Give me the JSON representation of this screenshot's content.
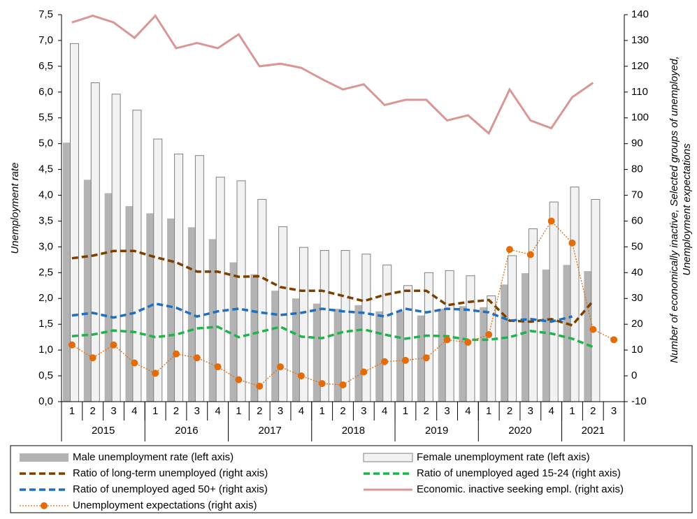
{
  "chart_data": {
    "type": "combo",
    "ylabel": "Unemployment rate",
    "y2label": [
      "Number of economically inactive, Selected groups of unemployed,",
      "Unemployment expectations"
    ],
    "categories": [
      "1",
      "2",
      "3",
      "4",
      "1",
      "2",
      "3",
      "4",
      "1",
      "2",
      "3",
      "4",
      "1",
      "2",
      "3",
      "4",
      "1",
      "2",
      "3",
      "4",
      "1",
      "2",
      "3",
      "4",
      "1",
      "2",
      "3"
    ],
    "year_groups": [
      {
        "label": "2015",
        "quarters": 4
      },
      {
        "label": "2016",
        "quarters": 4
      },
      {
        "label": "2017",
        "quarters": 4
      },
      {
        "label": "2018",
        "quarters": 4
      },
      {
        "label": "2019",
        "quarters": 4
      },
      {
        "label": "2020",
        "quarters": 4
      },
      {
        "label": "2021",
        "quarters": 3
      }
    ],
    "ylim": [
      0,
      7.5
    ],
    "yticks": [
      {
        "value": 0,
        "label": "0,0"
      },
      {
        "value": 0.5,
        "label": "0,5"
      },
      {
        "value": 1,
        "label": "1,0"
      },
      {
        "value": 1.5,
        "label": "1,5"
      },
      {
        "value": 2,
        "label": "2,0"
      },
      {
        "value": 2.5,
        "label": "2,5"
      },
      {
        "value": 3,
        "label": "3,0"
      },
      {
        "value": 3.5,
        "label": "3,5"
      },
      {
        "value": 4,
        "label": "4,0"
      },
      {
        "value": 4.5,
        "label": "4,5"
      },
      {
        "value": 5,
        "label": "5,0"
      },
      {
        "value": 5.5,
        "label": "5,5"
      },
      {
        "value": 6,
        "label": "6,0"
      },
      {
        "value": 6.5,
        "label": "6,5"
      },
      {
        "value": 7,
        "label": "7,0"
      },
      {
        "value": 7.5,
        "label": "7,5"
      }
    ],
    "y2lim": [
      -10,
      140
    ],
    "y2ticks": [
      -10,
      0,
      10,
      20,
      30,
      40,
      50,
      60,
      70,
      80,
      90,
      100,
      110,
      120,
      130,
      140
    ],
    "grid": false,
    "legend": "bottom",
    "series": [
      {
        "name": "Male unemployment rate (left axis)",
        "type": "bar",
        "color": "#b3b3b3",
        "axis": "y",
        "values": [
          5.02,
          4.3,
          4.04,
          3.79,
          3.65,
          3.55,
          3.38,
          3.15,
          2.7,
          2.47,
          2.15,
          2.0,
          1.9,
          1.8,
          1.87,
          1.75,
          1.75,
          1.67,
          1.8,
          1.85,
          1.83,
          2.27,
          2.49,
          2.56,
          2.65,
          2.53,
          null
        ]
      },
      {
        "name": "Female unemployment rate (left axis)",
        "type": "bar",
        "color": "#f2f2f2",
        "axis": "y",
        "values": [
          6.94,
          6.18,
          5.96,
          5.65,
          5.09,
          4.8,
          4.77,
          4.35,
          4.28,
          3.92,
          3.39,
          2.99,
          2.93,
          2.93,
          2.86,
          2.65,
          2.25,
          2.5,
          2.54,
          2.44,
          2.05,
          2.83,
          3.35,
          3.87,
          4.16,
          3.92,
          null
        ]
      },
      {
        "name": "Ratio of long-term unemployed  (right axis)",
        "type": "line",
        "style": "dashed",
        "color": "#7b3f00",
        "axis": "y2",
        "values": [
          45.6,
          46.6,
          48.4,
          48.4,
          46,
          44,
          40.4,
          40.4,
          38.4,
          38.6,
          34.4,
          33,
          33,
          31,
          29,
          31.4,
          33,
          33,
          27.4,
          28.6,
          29.4,
          21.4,
          21,
          22,
          19.6,
          29,
          null
        ]
      },
      {
        "name": "Ratio of unemployed aged 15-24 (right axis)",
        "type": "line",
        "style": "dashed",
        "color": "#1fb34a",
        "axis": "y2",
        "values": [
          15.4,
          16,
          17.6,
          17,
          15,
          16,
          18.4,
          19,
          15,
          17,
          19,
          15.2,
          14.6,
          17,
          18,
          16,
          14.4,
          15.6,
          15.4,
          14,
          14,
          15,
          17.4,
          16.4,
          14.4,
          11.2,
          null
        ]
      },
      {
        "name": "Ratio of unemployed aged 50+ (right axis)",
        "type": "line",
        "style": "dashed",
        "color": "#1f6fc0",
        "axis": "y2",
        "values": [
          23.4,
          24.4,
          22.6,
          24.4,
          28,
          26.4,
          23,
          25,
          26,
          24.6,
          23.6,
          24.4,
          26,
          25,
          24.4,
          23,
          26,
          24.6,
          26,
          25.6,
          24.6,
          21.4,
          22,
          21,
          23,
          null,
          null
        ]
      },
      {
        "name": "Economic. inactive seeking empl. (right axis)",
        "type": "line",
        "style": "solid",
        "color": "#d99694",
        "axis": "y2",
        "values": [
          137,
          139.6,
          137,
          131,
          139.6,
          127,
          129,
          127,
          132.4,
          120,
          121,
          119.4,
          115,
          111,
          113,
          105,
          107,
          107,
          99,
          101,
          94,
          111,
          99,
          96,
          108,
          113.6,
          null
        ]
      },
      {
        "name": "Unemployment expectations (right axis)",
        "type": "line",
        "style": "dotted",
        "marker": "circle",
        "color": "#e36c09",
        "axis": "y2",
        "values": [
          12,
          7,
          12,
          5,
          1,
          8.5,
          7,
          3.5,
          -1.5,
          -4,
          3.5,
          0,
          -3,
          -3.5,
          1.5,
          5.5,
          6,
          7,
          14,
          13,
          16,
          49,
          47,
          60,
          51.5,
          18,
          14
        ]
      }
    ]
  }
}
